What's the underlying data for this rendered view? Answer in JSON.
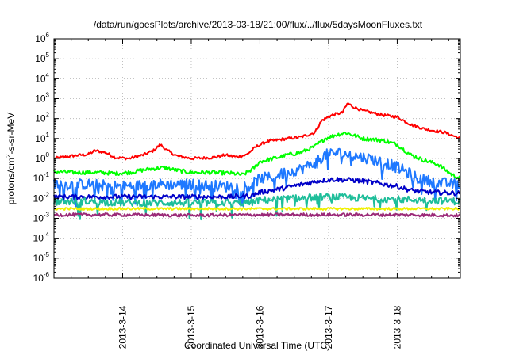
{
  "chart_data": {
    "type": "line",
    "title": "/data/run/goesPlots/archive/2013-03-18/21:00/flux/../flux/5daysMoonFluxes.txt",
    "xlabel": "Coordinated Universal Time (UTC)",
    "ylabel_parts": [
      "protons/cm",
      "2",
      "-s-sr-MeV"
    ],
    "y_scale": "log",
    "ylim_exp": [
      -6,
      6
    ],
    "xlim_days": [
      13.0,
      18.92
    ],
    "x_ticks": [
      {
        "day": 14,
        "label": "2013-3-14"
      },
      {
        "day": 15,
        "label": "2013-3-15"
      },
      {
        "day": 16,
        "label": "2013-3-16"
      },
      {
        "day": 17,
        "label": "2013-3-17"
      },
      {
        "day": 18,
        "label": "2013-3-18"
      }
    ],
    "grid": true,
    "legend": "none",
    "series": [
      {
        "color": "#ff0000",
        "noise": 0.07,
        "spikes": 0,
        "points": [
          [
            13.0,
            1.0
          ],
          [
            13.3,
            1.4
          ],
          [
            13.5,
            1.6
          ],
          [
            13.6,
            2.5
          ],
          [
            13.75,
            2.0
          ],
          [
            13.9,
            1.1
          ],
          [
            14.1,
            1.0
          ],
          [
            14.3,
            1.5
          ],
          [
            14.45,
            2.5
          ],
          [
            14.55,
            5.0
          ],
          [
            14.65,
            2.5
          ],
          [
            14.8,
            1.3
          ],
          [
            15.0,
            1.0
          ],
          [
            15.3,
            1.1
          ],
          [
            15.5,
            1.5
          ],
          [
            15.65,
            1.2
          ],
          [
            15.8,
            1.5
          ],
          [
            15.95,
            4.0
          ],
          [
            16.1,
            7.0
          ],
          [
            16.4,
            10.0
          ],
          [
            16.6,
            12.0
          ],
          [
            16.8,
            20.0
          ],
          [
            16.9,
            80.0
          ],
          [
            17.05,
            150.0
          ],
          [
            17.2,
            200.0
          ],
          [
            17.28,
            600.0
          ],
          [
            17.35,
            400.0
          ],
          [
            17.5,
            250.0
          ],
          [
            17.8,
            150.0
          ],
          [
            18.0,
            120.0
          ],
          [
            18.2,
            50.0
          ],
          [
            18.4,
            30.0
          ],
          [
            18.7,
            20.0
          ],
          [
            18.92,
            10.0
          ]
        ]
      },
      {
        "color": "#00ff00",
        "noise": 0.1,
        "spikes": 0,
        "points": [
          [
            13.0,
            0.22
          ],
          [
            13.3,
            0.2
          ],
          [
            13.6,
            0.2
          ],
          [
            13.9,
            0.18
          ],
          [
            14.1,
            0.2
          ],
          [
            14.4,
            0.3
          ],
          [
            14.6,
            0.35
          ],
          [
            14.8,
            0.25
          ],
          [
            15.0,
            0.2
          ],
          [
            15.3,
            0.2
          ],
          [
            15.6,
            0.18
          ],
          [
            15.75,
            0.15
          ],
          [
            15.9,
            0.3
          ],
          [
            16.0,
            0.7
          ],
          [
            16.2,
            1.0
          ],
          [
            16.4,
            1.5
          ],
          [
            16.6,
            2.0
          ],
          [
            16.8,
            4.0
          ],
          [
            16.95,
            10.0
          ],
          [
            17.1,
            15.0
          ],
          [
            17.25,
            20.0
          ],
          [
            17.5,
            10.0
          ],
          [
            17.8,
            8.0
          ],
          [
            18.0,
            5.0
          ],
          [
            18.2,
            1.5
          ],
          [
            18.4,
            0.8
          ],
          [
            18.6,
            0.5
          ],
          [
            18.8,
            0.15
          ],
          [
            18.92,
            0.1
          ]
        ]
      },
      {
        "color": "#1e78ff",
        "noise": 0.28,
        "spikes": 0.1,
        "points": [
          [
            13.0,
            0.05
          ],
          [
            13.5,
            0.05
          ],
          [
            14.0,
            0.04
          ],
          [
            14.5,
            0.05
          ],
          [
            15.0,
            0.05
          ],
          [
            15.5,
            0.04
          ],
          [
            15.85,
            0.04
          ],
          [
            16.0,
            0.1
          ],
          [
            16.2,
            0.12
          ],
          [
            16.4,
            0.2
          ],
          [
            16.6,
            0.3
          ],
          [
            16.8,
            0.6
          ],
          [
            16.95,
            1.5
          ],
          [
            17.1,
            2.0
          ],
          [
            17.3,
            1.5
          ],
          [
            17.6,
            1.0
          ],
          [
            17.9,
            0.5
          ],
          [
            18.1,
            0.25
          ],
          [
            18.3,
            0.1
          ],
          [
            18.6,
            0.06
          ],
          [
            18.92,
            0.05
          ]
        ]
      },
      {
        "color": "#0000c8",
        "noise": 0.12,
        "spikes": 0,
        "points": [
          [
            13.0,
            0.012
          ],
          [
            13.5,
            0.012
          ],
          [
            14.0,
            0.012
          ],
          [
            14.5,
            0.012
          ],
          [
            15.0,
            0.012
          ],
          [
            15.5,
            0.012
          ],
          [
            15.85,
            0.013
          ],
          [
            16.0,
            0.02
          ],
          [
            16.3,
            0.03
          ],
          [
            16.6,
            0.05
          ],
          [
            16.9,
            0.08
          ],
          [
            17.1,
            0.09
          ],
          [
            17.4,
            0.08
          ],
          [
            17.7,
            0.06
          ],
          [
            18.0,
            0.04
          ],
          [
            18.2,
            0.025
          ],
          [
            18.5,
            0.02
          ],
          [
            18.92,
            0.018
          ]
        ]
      },
      {
        "color": "#1ebe9a",
        "noise": 0.18,
        "spikes": 0.06,
        "points": [
          [
            13.0,
            0.007
          ],
          [
            13.5,
            0.007
          ],
          [
            14.0,
            0.006
          ],
          [
            14.5,
            0.006
          ],
          [
            15.0,
            0.006
          ],
          [
            15.5,
            0.006
          ],
          [
            15.85,
            0.006
          ],
          [
            16.0,
            0.008
          ],
          [
            16.5,
            0.01
          ],
          [
            17.0,
            0.012
          ],
          [
            17.5,
            0.01
          ],
          [
            18.0,
            0.009
          ],
          [
            18.5,
            0.008
          ],
          [
            18.92,
            0.007
          ]
        ]
      },
      {
        "color": "#f0f000",
        "noise": 0.06,
        "spikes": 0,
        "points": [
          [
            13.0,
            0.003
          ],
          [
            14.0,
            0.003
          ],
          [
            15.0,
            0.003
          ],
          [
            16.0,
            0.003
          ],
          [
            17.0,
            0.003
          ],
          [
            18.0,
            0.003
          ],
          [
            18.92,
            0.003
          ]
        ]
      },
      {
        "color": "#9b2a78",
        "noise": 0.08,
        "spikes": 0,
        "points": [
          [
            13.0,
            0.0015
          ],
          [
            14.0,
            0.0015
          ],
          [
            15.0,
            0.0014
          ],
          [
            16.0,
            0.0015
          ],
          [
            17.0,
            0.0015
          ],
          [
            18.0,
            0.0015
          ],
          [
            18.92,
            0.0014
          ]
        ]
      }
    ]
  }
}
